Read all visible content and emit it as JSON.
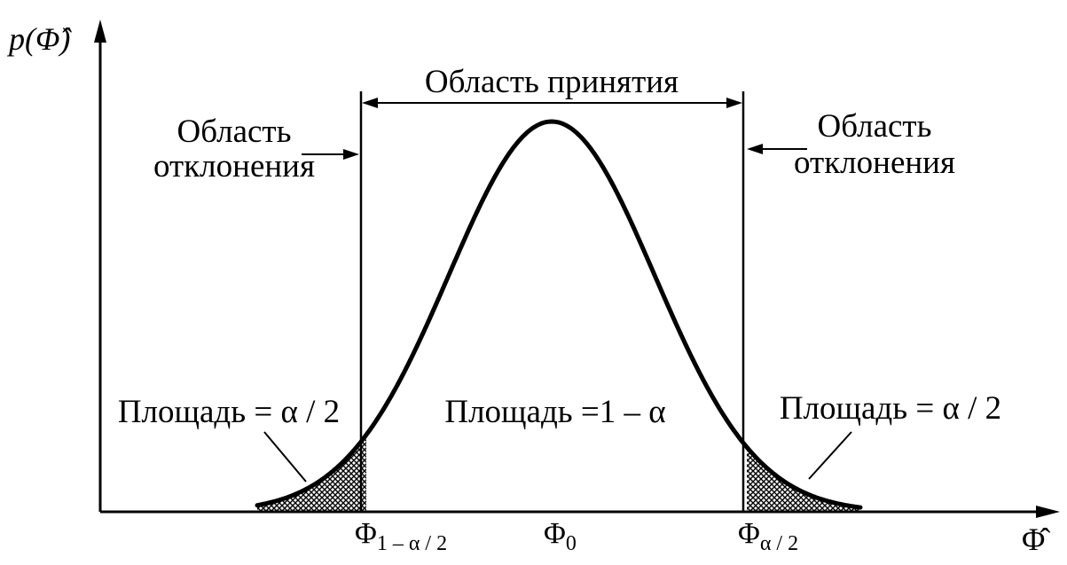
{
  "diagram": {
    "y_axis_label": "p(Φ̂)",
    "x_axis_label": "Φ̂",
    "acceptance_region": "Область принятия",
    "rejection_region_left": [
      "Область",
      "отклонения"
    ],
    "rejection_region_right": [
      "Область",
      "отклонения"
    ],
    "area_left": "Площадь = α / 2",
    "area_center": "Площадь =1 – α",
    "area_right": "Площадь = α / 2",
    "tick_left": {
      "base": "Φ",
      "sub": "1 – α / 2"
    },
    "tick_center": {
      "base": "Φ",
      "sub": "0"
    },
    "tick_right": {
      "base": "Φ",
      "sub": "α / 2"
    }
  }
}
